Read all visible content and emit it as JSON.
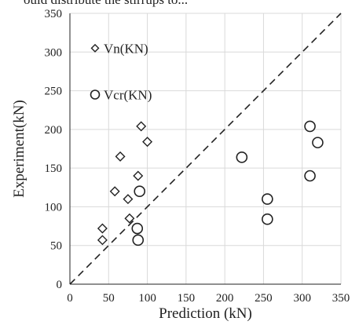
{
  "top_text": "ould distribute the stirrups to...",
  "chart_data": {
    "type": "scatter",
    "xlabel": "Prediction (kN)",
    "ylabel": "Experiment(kN)",
    "xlim": [
      0,
      350
    ],
    "ylim": [
      0,
      350
    ],
    "xticks": [
      0,
      50,
      100,
      150,
      200,
      250,
      300,
      350
    ],
    "yticks": [
      0,
      50,
      100,
      150,
      200,
      250,
      300,
      350
    ],
    "grid": true,
    "legend_position": "top-left",
    "reference_line": {
      "x": [
        0,
        350
      ],
      "y": [
        0,
        350
      ],
      "style": "dashed"
    },
    "series": [
      {
        "name": "Vn(KN)",
        "marker": "diamond",
        "points": [
          [
            42,
            72
          ],
          [
            42,
            57
          ],
          [
            58,
            120
          ],
          [
            65,
            165
          ],
          [
            75,
            110
          ],
          [
            77,
            85
          ],
          [
            88,
            140
          ],
          [
            92,
            204
          ],
          [
            100,
            184
          ]
        ]
      },
      {
        "name": "Vcr(KN)",
        "marker": "circle",
        "points": [
          [
            87,
            72
          ],
          [
            88,
            57
          ],
          [
            90,
            120
          ],
          [
            222,
            164
          ],
          [
            255,
            110
          ],
          [
            255,
            84
          ],
          [
            310,
            204
          ],
          [
            310,
            140
          ],
          [
            320,
            183
          ]
        ]
      }
    ]
  },
  "colors": {
    "marker_stroke": "#222222",
    "grid": "#d9d9d9",
    "axis": "#222222"
  }
}
